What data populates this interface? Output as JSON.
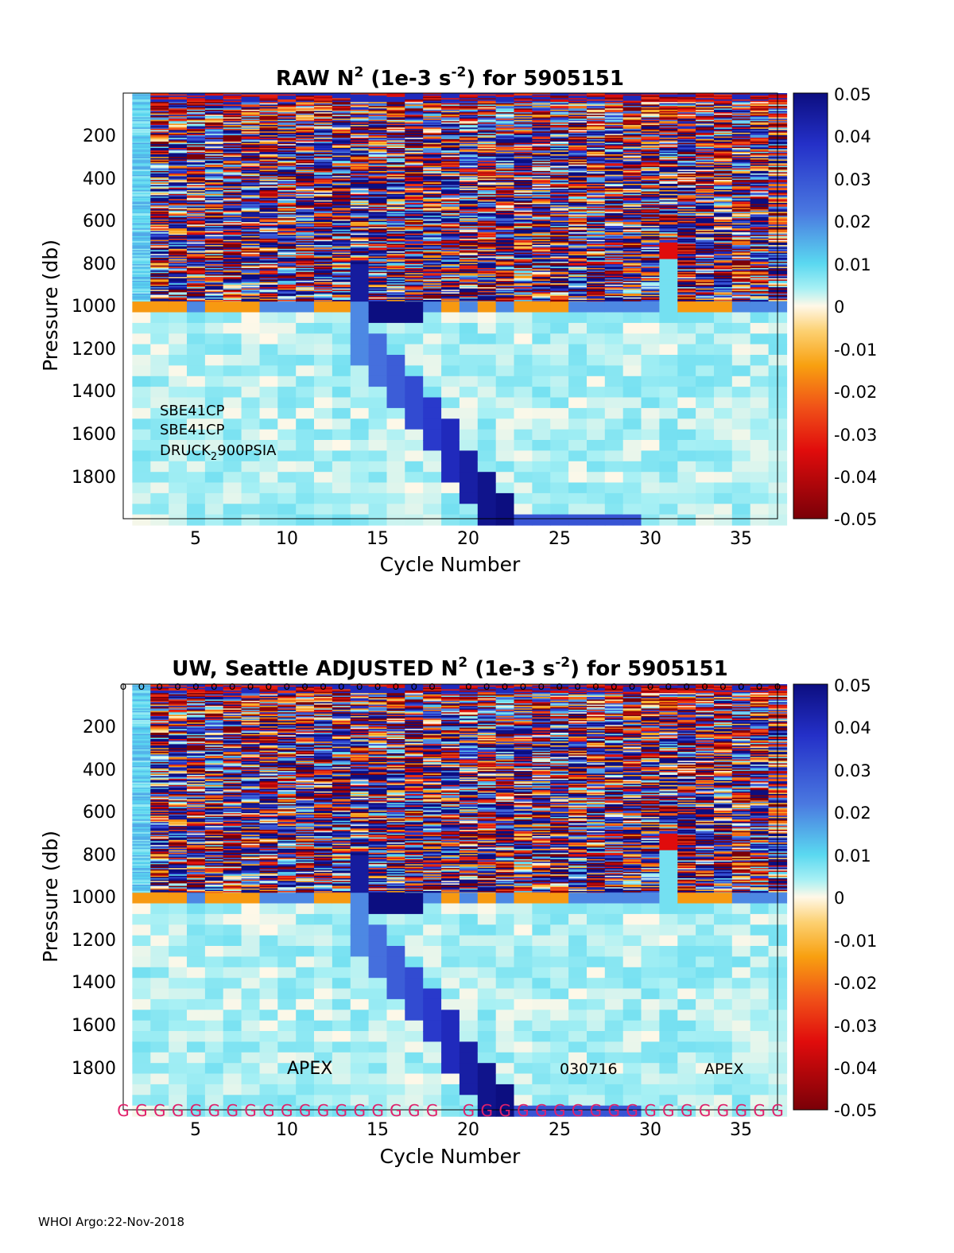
{
  "footer": "WHOI Argo:22-Nov-2018",
  "colorbar": {
    "ticks": [
      "0.05",
      "0.04",
      "0.03",
      "0.02",
      "0.01",
      "0",
      "-0.01",
      "-0.02",
      "-0.03",
      "-0.04",
      "-0.05"
    ]
  },
  "chart_data": [
    {
      "type": "heatmap",
      "title": "RAW N² (1e-3 s⁻²) for 5905151",
      "title_parts": [
        "RAW N",
        "2",
        " (1e-3 s",
        "-2",
        ") for 5905151"
      ],
      "xlabel": "Cycle Number",
      "ylabel": "Pressure (db)",
      "xlim": [
        1,
        37
      ],
      "ylim": [
        2000,
        0
      ],
      "xticks": [
        "5",
        "10",
        "15",
        "20",
        "25",
        "30",
        "35"
      ],
      "yticks": [
        "200",
        "400",
        "600",
        "800",
        "1000",
        "1200",
        "1400",
        "1600",
        "1800"
      ],
      "clim": [
        -0.05,
        0.05
      ],
      "colormap": "red-yellow-white-cyan-blue",
      "annotations": [
        "SBE41CP",
        "SBE41CP",
        "DRUCK",
        "2",
        "900PSIA"
      ],
      "features": {
        "deep_anomaly_cycles": [
          14,
          15,
          16,
          17,
          18,
          19,
          20,
          21,
          22
        ],
        "red_patch": {
          "cycle": 31,
          "pressure_range": [
            700,
            780
          ],
          "value": -0.04
        }
      }
    },
    {
      "type": "heatmap",
      "title": "UW, Seattle  ADJUSTED N² (1e-3 s⁻²) for 5905151",
      "title_parts": [
        "UW, Seattle  ADJUSTED N",
        "2",
        " (1e-3 s",
        "-2",
        ") for 5905151"
      ],
      "xlabel": "Cycle Number",
      "ylabel": "Pressure (db)",
      "xlim": [
        1,
        37
      ],
      "ylim": [
        2000,
        0
      ],
      "xticks": [
        "5",
        "10",
        "15",
        "20",
        "25",
        "30",
        "35"
      ],
      "yticks": [
        "200",
        "400",
        "600",
        "800",
        "1000",
        "1200",
        "1400",
        "1600",
        "1800"
      ],
      "clim": [
        -0.05,
        0.05
      ],
      "colormap": "red-yellow-white-cyan-blue",
      "annotations": [
        "APEX",
        "030716",
        "APEX"
      ],
      "top_markers": {
        "symbol": "o",
        "missing_cycles": [
          19
        ]
      },
      "bottom_markers": {
        "symbol": "G",
        "color": "#e0206a",
        "missing_cycles": [
          19
        ]
      },
      "features": {
        "deep_anomaly_cycles": [
          14,
          15,
          16,
          17,
          18,
          19,
          20,
          21,
          22
        ],
        "red_patch": {
          "cycle": 31,
          "pressure_range": [
            700,
            780
          ],
          "value": -0.04
        }
      }
    }
  ]
}
